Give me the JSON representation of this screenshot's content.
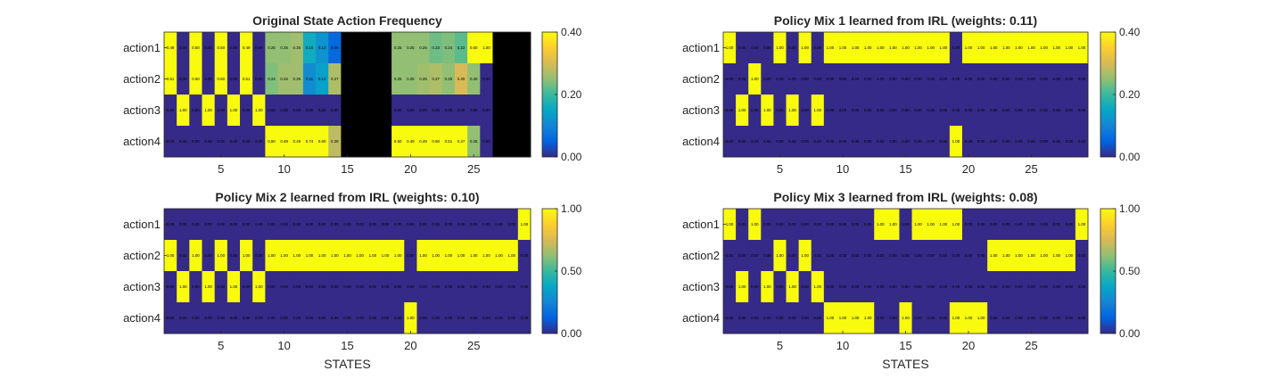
{
  "colors": {
    "missing": "#000000",
    "frame": "#262626",
    "parula": [
      "#352a87",
      "#0363e1",
      "#1485d4",
      "#06a7c6",
      "#38b99e",
      "#92bf73",
      "#d9ba56",
      "#fcce2e",
      "#f9fb0e"
    ]
  },
  "chart_data": [
    {
      "type": "heatmap",
      "title": "Original State Action Frequency",
      "xlabel": "",
      "ylabel": "",
      "row_labels": [
        "action1",
        "action2",
        "action3",
        "action4"
      ],
      "x_ticks": [
        5,
        10,
        15,
        20,
        25
      ],
      "x_range": [
        0.5,
        29.5
      ],
      "color_range": [
        0,
        0.4
      ],
      "colorbar_ticks": [
        "0.00",
        "0.20",
        "0.40"
      ],
      "colormap": "parula",
      "null_color": "black",
      "values": [
        [
          0.49,
          0,
          0.5,
          0,
          0.5,
          0,
          0.49,
          0,
          0.25,
          0.25,
          0.26,
          0.16,
          0.12,
          0.06,
          null,
          null,
          null,
          null,
          0.25,
          0.25,
          0.25,
          0.23,
          0.24,
          0.22,
          0.5,
          1.0,
          null,
          null,
          null
        ],
        [
          0.51,
          0,
          0.5,
          0,
          0.5,
          0,
          0.51,
          0,
          0.24,
          0.26,
          0.26,
          0.11,
          0.14,
          0.27,
          null,
          null,
          null,
          null,
          0.25,
          0.25,
          0.26,
          0.27,
          0.25,
          0.3,
          0.25,
          0,
          null,
          null,
          null
        ],
        [
          0,
          1.0,
          0,
          1.0,
          0,
          1.0,
          0,
          1.0,
          0,
          0,
          0,
          0,
          0,
          0,
          null,
          null,
          null,
          null,
          0,
          0,
          0,
          0,
          0,
          0,
          0,
          0,
          null,
          null,
          null
        ],
        [
          0,
          0,
          0,
          0,
          0,
          0,
          0,
          0,
          0.5,
          0.49,
          0.49,
          0.74,
          0.6,
          0.28,
          null,
          null,
          null,
          null,
          0.5,
          0.49,
          0.49,
          0.5,
          0.51,
          0.47,
          0.25,
          0,
          null,
          null,
          null
        ]
      ]
    },
    {
      "type": "heatmap",
      "title": "Policy Mix 1 learned from IRL (weights: 0.11)",
      "xlabel": "",
      "ylabel": "",
      "row_labels": [
        "action1",
        "action2",
        "action3",
        "action4"
      ],
      "x_ticks": [
        5,
        10,
        15,
        20,
        25
      ],
      "x_range": [
        0.5,
        29.5
      ],
      "color_range": [
        0,
        0.4
      ],
      "colorbar_ticks": [
        "0.00",
        "0.20",
        "0.40"
      ],
      "colormap": "parula",
      "values": [
        [
          1,
          0,
          0,
          0,
          1,
          0,
          1,
          0,
          1,
          1,
          1,
          1,
          1,
          1,
          1,
          1,
          1,
          1,
          0,
          1,
          1,
          1,
          1,
          1,
          1,
          1,
          1,
          1,
          1
        ],
        [
          0,
          0,
          1,
          0,
          0,
          0,
          0,
          0,
          0,
          0,
          0,
          0,
          0,
          0,
          0,
          0,
          0,
          0,
          0,
          0,
          0,
          0,
          0,
          0,
          0,
          0,
          0,
          0,
          0
        ],
        [
          0,
          1,
          0,
          1,
          0,
          1,
          0,
          1,
          0,
          0,
          0,
          0,
          0,
          0,
          0,
          0,
          0,
          0,
          0,
          0,
          0,
          0,
          0,
          0,
          0,
          0,
          0,
          0,
          0
        ],
        [
          0,
          0,
          0,
          0,
          0,
          0,
          0,
          0,
          0,
          0,
          0,
          0,
          0,
          0,
          0,
          0,
          0,
          0,
          1,
          0,
          0,
          0,
          0,
          0,
          0,
          0,
          0,
          0,
          0
        ]
      ]
    },
    {
      "type": "heatmap",
      "title": "Policy Mix 2 learned from IRL (weights: 0.10)",
      "xlabel": "STATES",
      "ylabel": "",
      "row_labels": [
        "action1",
        "action2",
        "action3",
        "action4"
      ],
      "x_ticks": [
        5,
        10,
        15,
        20,
        25
      ],
      "x_range": [
        0.5,
        29.5
      ],
      "color_range": [
        0,
        1
      ],
      "colorbar_ticks": [
        "0.00",
        "0.50",
        "1.00"
      ],
      "colormap": "parula",
      "values": [
        [
          0,
          0,
          0,
          0,
          0,
          0,
          0,
          0,
          0,
          0,
          0,
          0,
          0,
          0,
          0,
          0,
          0,
          0,
          0,
          0,
          0,
          0,
          0,
          0,
          0,
          0,
          0,
          0,
          1
        ],
        [
          1,
          0,
          1,
          0,
          1,
          0,
          1,
          0,
          1,
          1,
          1,
          1,
          1,
          1,
          1,
          1,
          1,
          1,
          1,
          0,
          1,
          1,
          1,
          1,
          1,
          1,
          1,
          1,
          0
        ],
        [
          0,
          1,
          0,
          1,
          0,
          1,
          0,
          1,
          0,
          0,
          0,
          0,
          0,
          0,
          0,
          0,
          0,
          0,
          0,
          0,
          0,
          0,
          0,
          0,
          0,
          0,
          0,
          0,
          0
        ],
        [
          0,
          0,
          0,
          0,
          0,
          0,
          0,
          0,
          0,
          0,
          0,
          0,
          0,
          0,
          0,
          0,
          0,
          0,
          0,
          1,
          0,
          0,
          0,
          0,
          0,
          0,
          0,
          0,
          0
        ]
      ]
    },
    {
      "type": "heatmap",
      "title": "Policy Mix 3 learned from IRL (weights: 0.08)",
      "xlabel": "STATES",
      "ylabel": "",
      "row_labels": [
        "action1",
        "action2",
        "action3",
        "action4"
      ],
      "x_ticks": [
        5,
        10,
        15,
        20,
        25
      ],
      "x_range": [
        0.5,
        29.5
      ],
      "color_range": [
        0,
        1
      ],
      "colorbar_ticks": [
        "0.00",
        "0.50",
        "1.00"
      ],
      "colormap": "parula",
      "values": [
        [
          1,
          0,
          1,
          0,
          0,
          0,
          0,
          0,
          0,
          0,
          0,
          0,
          1,
          1,
          0,
          1,
          1,
          1,
          1,
          0,
          0,
          0,
          0,
          0,
          0,
          0,
          0,
          0,
          1
        ],
        [
          0,
          0,
          0,
          0,
          1,
          0,
          1,
          0,
          0,
          0,
          0,
          0,
          0,
          0,
          0,
          0,
          0,
          0,
          0,
          0,
          0,
          1,
          1,
          1,
          1,
          1,
          1,
          1,
          0
        ],
        [
          0,
          1,
          0,
          1,
          0,
          1,
          0,
          1,
          0,
          0,
          0,
          0,
          0,
          0,
          0,
          0,
          0,
          0,
          0,
          0,
          0,
          0,
          0,
          0,
          0,
          0,
          0,
          0,
          0
        ],
        [
          0,
          0,
          0,
          0,
          0,
          0,
          0,
          0,
          1,
          1,
          1,
          1,
          0,
          0,
          1,
          0,
          0,
          0,
          1,
          1,
          1,
          0,
          0,
          0,
          0,
          0,
          0,
          0,
          0
        ]
      ]
    }
  ]
}
